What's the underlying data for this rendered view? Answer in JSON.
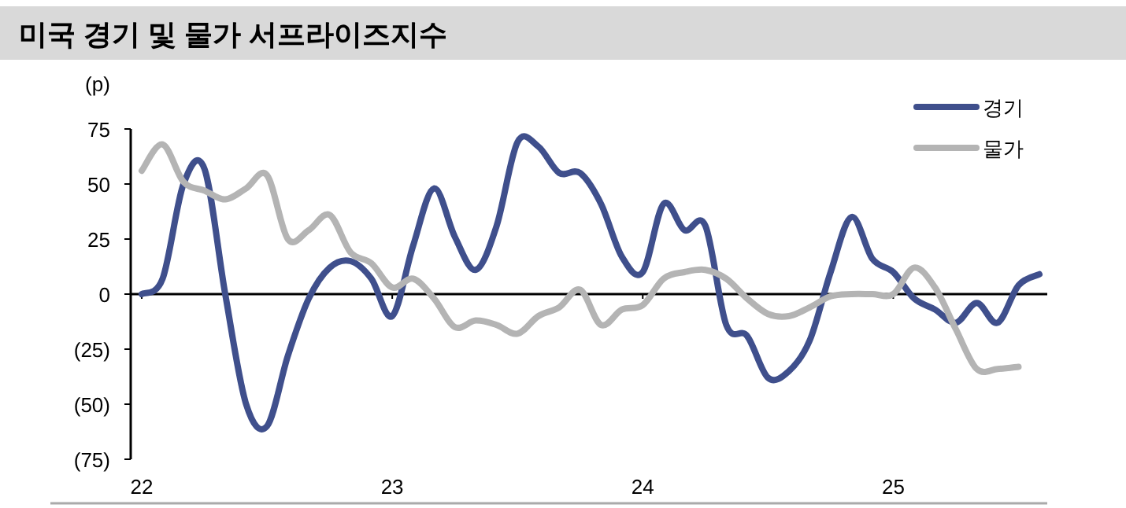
{
  "chart_data": {
    "type": "line",
    "title": "미국 경기 및 물가 서프라이즈지수",
    "ylabel": "(p)",
    "x": [
      "2022-01",
      "2022-02",
      "2022-03",
      "2022-04",
      "2022-05",
      "2022-06",
      "2022-07",
      "2022-08",
      "2022-09",
      "2022-10",
      "2022-11",
      "2022-12",
      "2023-01",
      "2023-02",
      "2023-03",
      "2023-04",
      "2023-05",
      "2023-06",
      "2023-07",
      "2023-08",
      "2023-09",
      "2023-10",
      "2023-11",
      "2023-12",
      "2024-01",
      "2024-02",
      "2024-03",
      "2024-04",
      "2024-05",
      "2024-06",
      "2024-07",
      "2024-08",
      "2024-09",
      "2024-10",
      "2024-11",
      "2024-12",
      "2025-01",
      "2025-02",
      "2025-03",
      "2025-04",
      "2025-05",
      "2025-06",
      "2025-07",
      "2025-08"
    ],
    "series": [
      {
        "name": "경기",
        "color": "#3f4f8c",
        "values": [
          0,
          7,
          50,
          57,
          0,
          -50,
          -60,
          -28,
          -2,
          12,
          15,
          7,
          -10,
          22,
          48,
          26,
          11,
          31,
          69,
          67,
          55,
          55,
          41,
          17,
          10,
          41,
          29,
          31,
          -14,
          -19,
          -38,
          -35,
          -21,
          10,
          35,
          16,
          10,
          -2,
          -7,
          -13,
          -4,
          -13,
          4,
          9
        ]
      },
      {
        "name": "물가",
        "color": "#b4b4b4",
        "values": [
          56,
          68,
          51,
          47,
          43,
          48,
          54,
          25,
          29,
          36,
          19,
          14,
          3,
          7,
          -2,
          -15,
          -12,
          -14,
          -18,
          -10,
          -6,
          2,
          -14,
          -7,
          -5,
          7,
          10,
          11,
          7,
          -2,
          -9,
          -10,
          -6,
          -1,
          0,
          0,
          0,
          12,
          3,
          -16,
          -34,
          -34,
          -33,
          null
        ]
      }
    ],
    "xlim": [
      "2022-01",
      "2025-08"
    ],
    "xticks": [
      {
        "value": "2022-01",
        "label": "22"
      },
      {
        "value": "2023-01",
        "label": "23"
      },
      {
        "value": "2024-01",
        "label": "24"
      },
      {
        "value": "2025-01",
        "label": "25"
      }
    ],
    "ylim": [
      -75,
      75
    ],
    "yticks": [
      {
        "value": -75,
        "label": "(75)"
      },
      {
        "value": -50,
        "label": "(50)"
      },
      {
        "value": -25,
        "label": "(25)"
      },
      0,
      25,
      50,
      75
    ],
    "legend": "top right"
  }
}
